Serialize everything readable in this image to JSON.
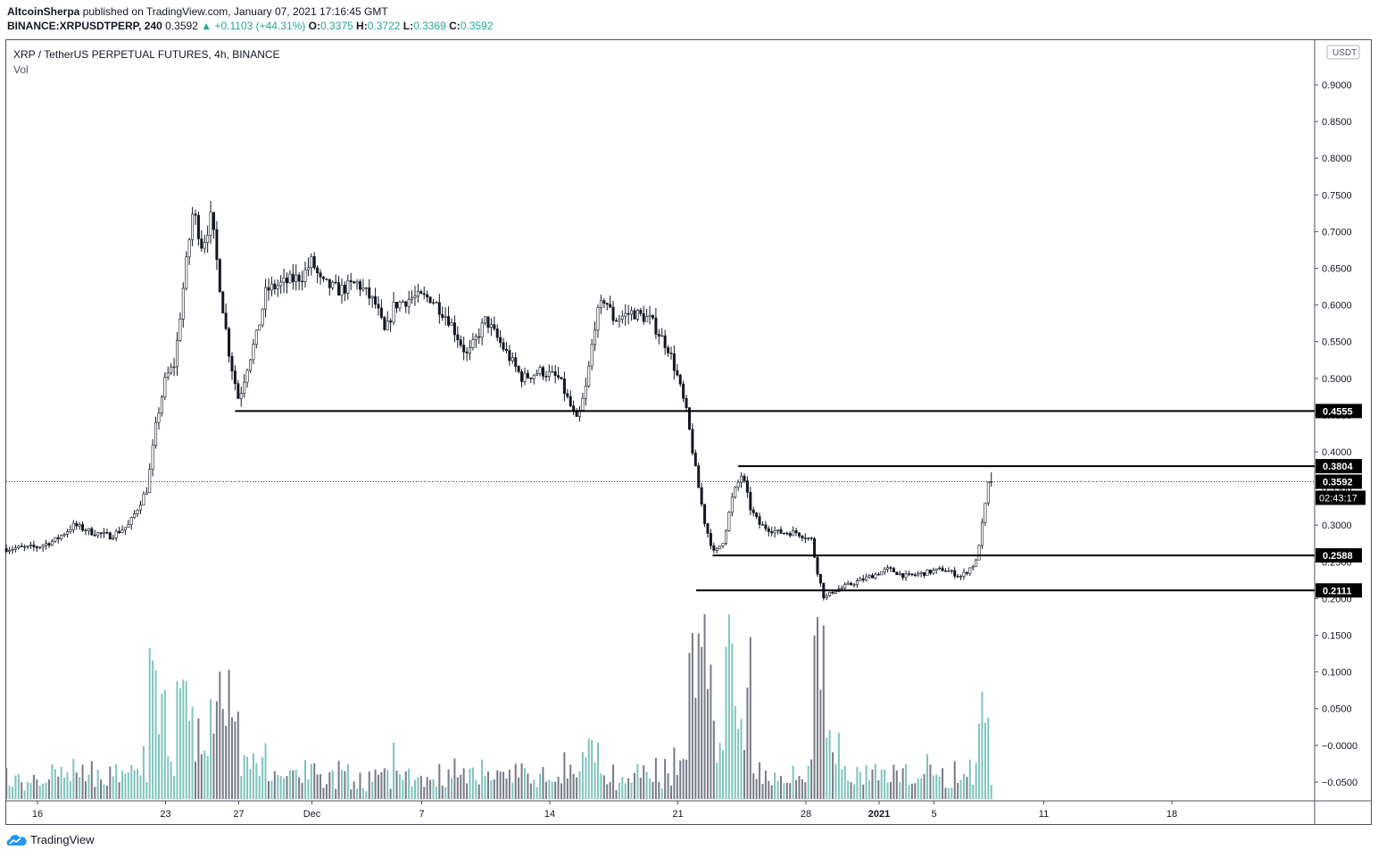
{
  "header": {
    "author": "AltcoinSherpa",
    "published_text": "published on TradingView.com, January 07, 2021 17:16:45 GMT",
    "symbol": "BINANCE:XRPUSDTPERP, 240",
    "last": "0.3592",
    "change_arrow": "▲",
    "change": "+0.1103 (+44.31%)",
    "o_label": "O:",
    "o": "0.3375",
    "h_label": "H:",
    "h": "0.3722",
    "l_label": "L:",
    "l": "0.3369",
    "c_label": "C:",
    "c": "0.3592"
  },
  "chart_title": "XRP / TetherUS PERPETUAL FUTURES, 4h, BINANCE",
  "volume_label": "Vol",
  "footer": {
    "brand": "TradingView"
  },
  "colors": {
    "up_candle": "#26a69a",
    "down_candle": "#131722",
    "vol_up": "#7fc4be",
    "vol_down": "#787b86",
    "level_label_bg": "#000000"
  },
  "chart_data": {
    "type": "candlestick",
    "timeframe": "4h",
    "currency_label": "USDT",
    "y_ticks": [
      "0.9000",
      "0.8500",
      "0.8000",
      "0.7500",
      "0.7000",
      "0.6500",
      "0.6000",
      "0.5500",
      "0.5000",
      "0.4500",
      "0.4000",
      "0.3500",
      "0.3000",
      "0.2500",
      "0.2000",
      "0.1500",
      "0.1000",
      "0.0500",
      "−0.0000",
      "−0.0500"
    ],
    "y_tick_values": [
      0.9,
      0.85,
      0.8,
      0.75,
      0.7,
      0.65,
      0.6,
      0.55,
      0.5,
      0.45,
      0.4,
      0.35,
      0.3,
      0.25,
      0.2,
      0.15,
      0.1,
      0.05,
      0.0,
      -0.05
    ],
    "x_ticks": [
      {
        "label": "16",
        "day": 0
      },
      {
        "label": "23",
        "day": 7
      },
      {
        "label": "27",
        "day": 11
      },
      {
        "label": "Dec",
        "day": 15
      },
      {
        "label": "7",
        "day": 21
      },
      {
        "label": "14",
        "day": 28
      },
      {
        "label": "21",
        "day": 35
      },
      {
        "label": "28",
        "day": 42
      },
      {
        "label": "2021",
        "day": 46
      },
      {
        "label": "5",
        "day": 49
      },
      {
        "label": "11",
        "day": 55
      },
      {
        "label": "18",
        "day": 62
      }
    ],
    "price_path": [
      [
        -1.7,
        0.268
      ],
      [
        0,
        0.27
      ],
      [
        1,
        0.28
      ],
      [
        2,
        0.3
      ],
      [
        3,
        0.29
      ],
      [
        4,
        0.285
      ],
      [
        5,
        0.3
      ],
      [
        6,
        0.35
      ],
      [
        6.5,
        0.44
      ],
      [
        7,
        0.5
      ],
      [
        7.5,
        0.52
      ],
      [
        8,
        0.63
      ],
      [
        8.5,
        0.73
      ],
      [
        9,
        0.68
      ],
      [
        9.5,
        0.72
      ],
      [
        10,
        0.62
      ],
      [
        10.5,
        0.53
      ],
      [
        11,
        0.47
      ],
      [
        11.5,
        0.52
      ],
      [
        12,
        0.56
      ],
      [
        12.5,
        0.62
      ],
      [
        13.5,
        0.63
      ],
      [
        14.5,
        0.64
      ],
      [
        15,
        0.66
      ],
      [
        15.5,
        0.63
      ],
      [
        16.5,
        0.62
      ],
      [
        17.5,
        0.63
      ],
      [
        18.5,
        0.6
      ],
      [
        19,
        0.56
      ],
      [
        19.5,
        0.6
      ],
      [
        20.5,
        0.61
      ],
      [
        21.5,
        0.61
      ],
      [
        22.5,
        0.58
      ],
      [
        23.5,
        0.53
      ],
      [
        24.5,
        0.58
      ],
      [
        25.5,
        0.54
      ],
      [
        26.5,
        0.5
      ],
      [
        27.5,
        0.51
      ],
      [
        28.5,
        0.5
      ],
      [
        29.5,
        0.44
      ],
      [
        30,
        0.49
      ],
      [
        30.5,
        0.58
      ],
      [
        31,
        0.61
      ],
      [
        31.5,
        0.58
      ],
      [
        32.5,
        0.59
      ],
      [
        33.5,
        0.58
      ],
      [
        34.5,
        0.54
      ],
      [
        35,
        0.5
      ],
      [
        35.5,
        0.45
      ],
      [
        36,
        0.37
      ],
      [
        36.5,
        0.3
      ],
      [
        37,
        0.26
      ],
      [
        37.5,
        0.28
      ],
      [
        38,
        0.34
      ],
      [
        38.5,
        0.37
      ],
      [
        39,
        0.32
      ],
      [
        39.5,
        0.3
      ],
      [
        40.5,
        0.29
      ],
      [
        41.5,
        0.29
      ],
      [
        42.3,
        0.28
      ],
      [
        42.6,
        0.24
      ],
      [
        43,
        0.2
      ],
      [
        43.5,
        0.21
      ],
      [
        44.5,
        0.22
      ],
      [
        45.5,
        0.23
      ],
      [
        46.5,
        0.24
      ],
      [
        47.5,
        0.23
      ],
      [
        48.5,
        0.235
      ],
      [
        49.5,
        0.24
      ],
      [
        50.5,
        0.23
      ],
      [
        51.3,
        0.25
      ],
      [
        51.7,
        0.31
      ],
      [
        52,
        0.36
      ],
      [
        52.2,
        0.3592
      ]
    ],
    "last_price": 0.3592,
    "countdown": "02:43:17",
    "horizontal_levels": [
      {
        "price": 0.4555,
        "label": "0.4555",
        "from_day": 10.8
      },
      {
        "price": 0.3804,
        "label": "0.3804",
        "from_day": 38.3
      },
      {
        "price": 0.2588,
        "label": "0.2588",
        "from_day": 36.9
      },
      {
        "price": 0.2111,
        "label": "0.2111",
        "from_day": 36.0
      }
    ],
    "last_price_label": "0.3592",
    "grid": false,
    "legend": "none"
  }
}
